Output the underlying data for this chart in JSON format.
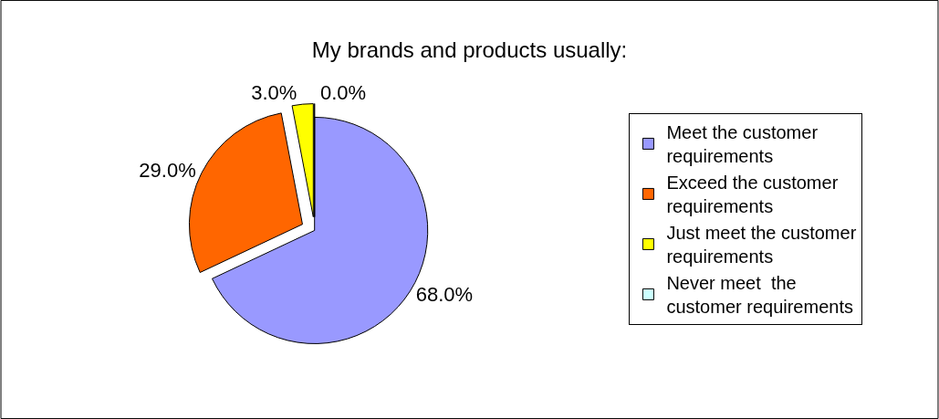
{
  "chart_data": {
    "type": "pie",
    "title": "My brands and products usually:",
    "categories": [
      "Meet the customer requirements",
      "Exceed the customer requirements",
      "Just meet the customer requirements",
      "Never meet  the customer requirements"
    ],
    "values": [
      68.0,
      29.0,
      3.0,
      0.0
    ],
    "value_labels": [
      "68.0%",
      "29.0%",
      "3.0%",
      "0.0%"
    ],
    "colors": [
      "#9999ff",
      "#ff6600",
      "#ffff00",
      "#ccffff"
    ],
    "legend": "right"
  }
}
